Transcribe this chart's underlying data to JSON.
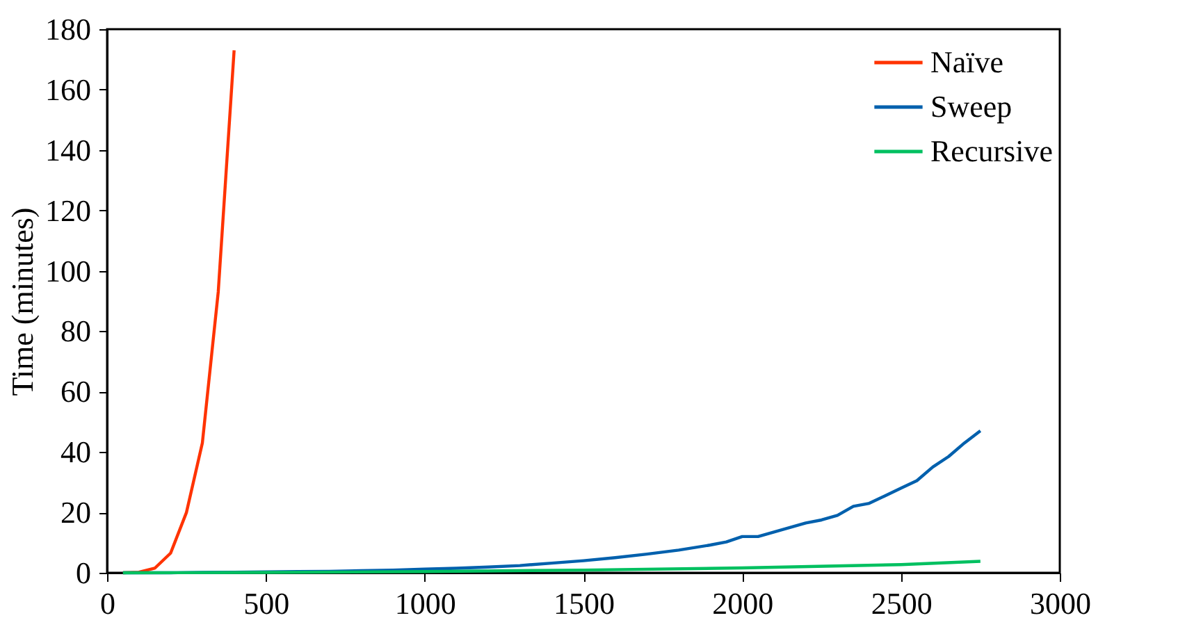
{
  "chart_data": {
    "type": "line",
    "ylabel": "Time (minutes)",
    "xlim": [
      0,
      3000
    ],
    "xticks": [
      0,
      500,
      1000,
      1500,
      2000,
      2500,
      3000
    ],
    "ylim": [
      0,
      180
    ],
    "yticks": [
      0,
      20,
      40,
      60,
      80,
      100,
      120,
      140,
      160,
      180
    ],
    "grid": false,
    "legend": "top right",
    "marker": "none",
    "line_style": "solid",
    "series": [
      {
        "name": "Naïve",
        "color": "#ff3300",
        "x": [
          50,
          100,
          150,
          200,
          250,
          300,
          350,
          400
        ],
        "values": [
          0,
          0.2,
          1.5,
          6.5,
          20,
          43,
          93,
          173
        ]
      },
      {
        "name": "Sweep",
        "color": "#0060ad",
        "x": [
          50,
          100,
          200,
          300,
          400,
          500,
          600,
          700,
          800,
          900,
          1000,
          1100,
          1200,
          1300,
          1400,
          1500,
          1600,
          1700,
          1800,
          1900,
          1950,
          2000,
          2050,
          2100,
          2150,
          2200,
          2250,
          2300,
          2350,
          2400,
          2450,
          2500,
          2550,
          2600,
          2650,
          2700,
          2750
        ],
        "values": [
          0,
          0,
          0,
          0.1,
          0.2,
          0.3,
          0.4,
          0.5,
          0.7,
          0.9,
          1.2,
          1.5,
          1.9,
          2.4,
          3.2,
          4,
          5,
          6.2,
          7.5,
          9.2,
          10.2,
          12,
          12,
          13.5,
          15,
          16.5,
          17.5,
          19,
          22,
          23,
          25.5,
          28,
          30.5,
          35,
          38.5,
          43,
          47
        ]
      },
      {
        "name": "Recursive",
        "color": "#00c060",
        "x": [
          50,
          500,
          1000,
          1500,
          2000,
          2500,
          2750
        ],
        "values": [
          0,
          0.1,
          0.4,
          0.9,
          1.6,
          2.7,
          3.8
        ]
      }
    ]
  }
}
